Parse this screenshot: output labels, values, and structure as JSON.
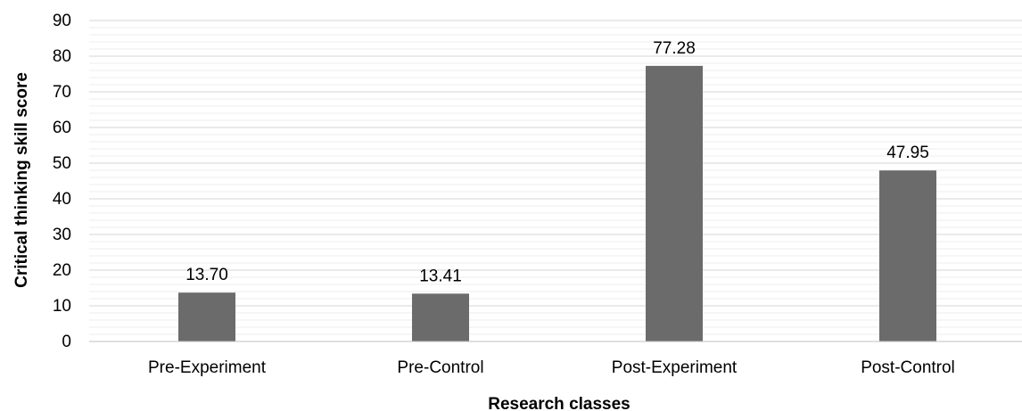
{
  "chart_data": {
    "type": "bar",
    "categories": [
      "Pre-Experiment",
      "Pre-Control",
      "Post-Experiment",
      "Post-Control"
    ],
    "values": [
      13.7,
      13.41,
      77.28,
      47.95
    ],
    "data_labels": [
      "13.70",
      "13.41",
      "77.28",
      "47.95"
    ],
    "xlabel": "Research classes",
    "ylabel": "Critical thinking skill score",
    "ylim": [
      0,
      90
    ],
    "yticks": [
      "0",
      "10",
      "20",
      "30",
      "40",
      "50",
      "60",
      "70",
      "80",
      "90"
    ],
    "grid": true,
    "legend": "none",
    "colors": {
      "bar": "#6b6b6b",
      "grid_major": "#d4d4d4",
      "grid_minor": "#ececec",
      "axis": "#bfbfbf"
    }
  }
}
